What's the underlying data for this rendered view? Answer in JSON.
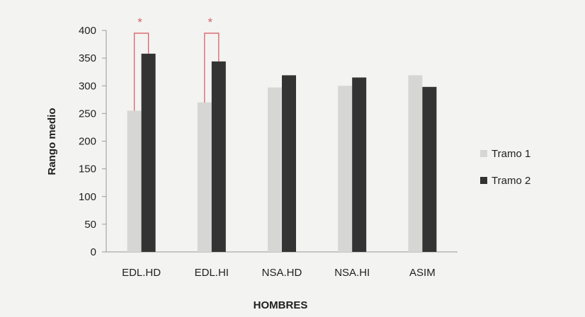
{
  "chart_data": {
    "type": "bar",
    "title": "",
    "xlabel": "HOMBRES",
    "ylabel": "Rango medio",
    "ylim": [
      0,
      400
    ],
    "yticks": [
      0,
      50,
      100,
      150,
      200,
      250,
      300,
      350,
      400
    ],
    "grid": false,
    "legend_position": "right",
    "categories": [
      "EDL.HD",
      "EDL.HI",
      "NSA.HD",
      "NSA.HI",
      "ASIM"
    ],
    "series": [
      {
        "name": "Tramo 1",
        "color": "#d6d6d4",
        "values": [
          255,
          270,
          297,
          300,
          319
        ]
      },
      {
        "name": "Tramo 2",
        "color": "#333333",
        "values": [
          358,
          344,
          319,
          315,
          298
        ]
      }
    ],
    "significance": [
      {
        "category": "EDL.HD",
        "label": "*",
        "bracket_top": 395,
        "color": "#d9626a"
      },
      {
        "category": "EDL.HI",
        "label": "*",
        "bracket_top": 395,
        "color": "#d9626a"
      }
    ]
  }
}
